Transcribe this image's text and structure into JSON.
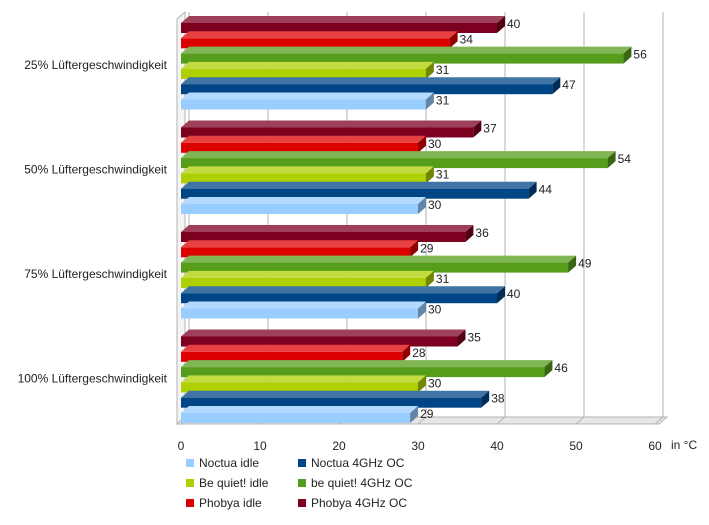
{
  "chart_data": {
    "type": "bar",
    "orientation": "horizontal",
    "categories": [
      "25% Lüftergeschwindigkeit",
      "50% Lüftergeschwindigkeit",
      "75% Lüftergeschwindigkeit",
      "100% Lüftergeschwindigkeit"
    ],
    "series": [
      {
        "name": "Noctua idle",
        "color": "#99ccff",
        "values": [
          31,
          30,
          30,
          29
        ]
      },
      {
        "name": "Noctua 4GHz OC",
        "color": "#004586",
        "values": [
          47,
          44,
          40,
          38
        ]
      },
      {
        "name": "Be quiet! idle",
        "color": "#aecf00",
        "values": [
          31,
          31,
          31,
          30
        ]
      },
      {
        "name": "be quiet! 4GHz OC",
        "color": "#579d1c",
        "values": [
          56,
          54,
          49,
          46
        ]
      },
      {
        "name": "Phobya idle",
        "color": "#dd0000",
        "values": [
          34,
          30,
          29,
          28
        ]
      },
      {
        "name": "Phobya 4GHz OC",
        "color": "#7e0021",
        "values": [
          40,
          37,
          36,
          35
        ]
      }
    ],
    "xlim": [
      0,
      60
    ],
    "xticks": [
      "0",
      "10",
      "20",
      "30",
      "40",
      "50",
      "60"
    ],
    "xlabel": "in °C",
    "grid": "vertical",
    "legend_position": "bottom"
  }
}
